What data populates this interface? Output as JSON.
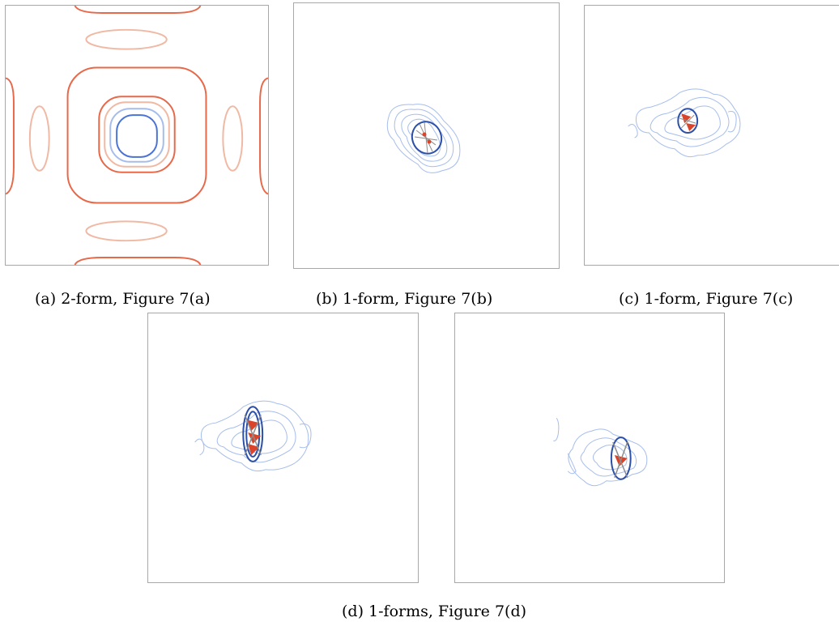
{
  "figure": {
    "panels": [
      {
        "id": "a",
        "caption": "(a) 2-form, Figure 7(a)"
      },
      {
        "id": "b",
        "caption": "(b) 1-form, Figure 7(b)"
      },
      {
        "id": "c",
        "caption": "(c) 1-form, Figure 7(c)"
      },
      {
        "id": "d",
        "caption": "(d) 1-forms, Figure 7(d)"
      }
    ]
  },
  "colors": {
    "frame": "#a8a8a8",
    "contour_red": "#e8684a",
    "contour_light_red": "#f0b9a4",
    "contour_blue": "#4b73d6",
    "contour_light_blue": "#a6bdec",
    "contour_dark_blue": "#2c4fa8",
    "glyph_red": "#d9442a",
    "glyph_gray": "#8c8c8c"
  }
}
